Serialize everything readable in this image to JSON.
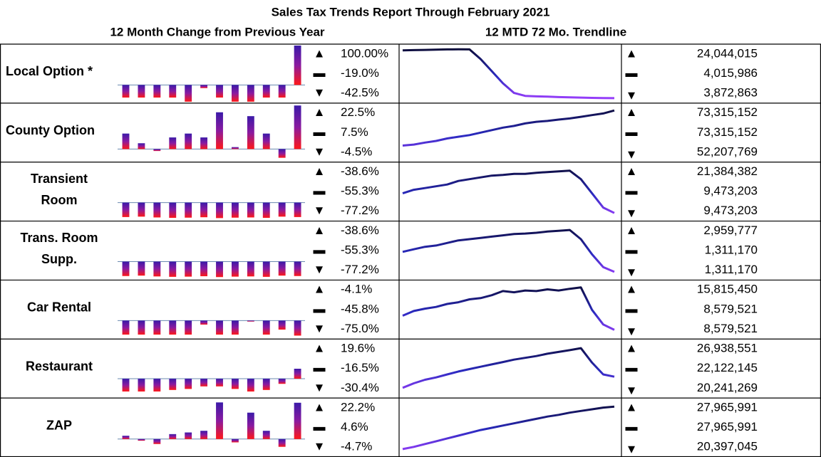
{
  "title": "Sales Tax Trends Report Through February 2021",
  "subtitle_left": "12 Month Change from Previous Year",
  "subtitle_right": "12 MTD 72 Mo. Trendline",
  "rows": [
    {
      "label": [
        "Local Option *"
      ],
      "bars": [
        -32,
        -32,
        -32,
        -32,
        -42.5,
        -8,
        -32,
        -42.5,
        -42.5,
        -32,
        -32,
        100
      ],
      "bar_ylim": [
        -42.5,
        100
      ],
      "pct": [
        "100.00%",
        "-19.0%",
        "-42.5%"
      ],
      "trend": [
        23.6,
        23.7,
        23.8,
        23.9,
        24.0,
        24.04,
        24.0,
        20,
        15,
        10,
        6,
        4.8,
        4.6,
        4.5,
        4.3,
        4.2,
        4.1,
        4.0,
        3.9,
        3.87
      ],
      "trend_ylim": [
        3,
        25
      ],
      "totals": [
        "24,044,015",
        "4,015,986",
        "3,872,863"
      ]
    },
    {
      "label": [
        "County Option"
      ],
      "bars": [
        8,
        3,
        -1,
        6,
        8,
        6,
        19,
        1,
        17,
        8,
        -4.5,
        22.5
      ],
      "bar_ylim": [
        -6,
        23
      ],
      "pct": [
        "22.5%",
        "7.5%",
        "-4.5%"
      ],
      "trend": [
        52.2,
        52.8,
        54,
        55,
        56.5,
        57.5,
        58.5,
        60,
        61.5,
        63,
        64,
        65.5,
        66.5,
        67,
        67.8,
        68.5,
        69.5,
        70.5,
        71.5,
        73.3
      ],
      "trend_ylim": [
        44,
        76
      ],
      "totals": [
        "73,315,152",
        "73,315,152",
        "52,207,769"
      ]
    },
    {
      "label": [
        "Transient",
        "Room"
      ],
      "bars": [
        -72,
        -70,
        -74,
        -76,
        -75,
        -73,
        -77.2,
        -75,
        -74,
        -76,
        -70,
        -72
      ],
      "bar_ylim": [
        -85,
        195
      ],
      "pct": [
        "-38.6%",
        "-55.3%",
        "-77.2%"
      ],
      "trend": [
        15,
        16,
        16.5,
        17,
        17.5,
        18.5,
        19,
        19.5,
        20,
        20.2,
        20.5,
        20.5,
        20.8,
        21,
        21.2,
        21.38,
        19,
        15,
        11,
        9.47
      ],
      "trend_ylim": [
        8,
        23
      ],
      "totals": [
        "21,384,382",
        "9,473,203",
        "9,473,203"
      ]
    },
    {
      "label": [
        "Trans. Room",
        "Supp."
      ],
      "bars": [
        -72,
        -70,
        -74,
        -76,
        -75,
        -73,
        -77.2,
        -75,
        -74,
        -76,
        -70,
        -72
      ],
      "bar_ylim": [
        -85,
        195
      ],
      "pct": [
        "-38.6%",
        "-55.3%",
        "-77.2%"
      ],
      "trend": [
        2.1,
        2.2,
        2.3,
        2.35,
        2.45,
        2.55,
        2.6,
        2.65,
        2.7,
        2.75,
        2.8,
        2.82,
        2.85,
        2.9,
        2.93,
        2.96,
        2.6,
        2.0,
        1.5,
        1.31
      ],
      "trend_ylim": [
        1.1,
        3.2
      ],
      "totals": [
        "2,959,777",
        "1,311,170",
        "1,311,170"
      ]
    },
    {
      "label": [
        "Car Rental"
      ],
      "bars": [
        -70,
        -70,
        -70,
        -70,
        -70,
        -20,
        -70,
        -70,
        -5,
        -70,
        -45,
        -75
      ],
      "bar_ylim": [
        -85,
        195
      ],
      "pct": [
        "-4.1%",
        "-45.8%",
        "-75.0%"
      ],
      "trend": [
        11,
        11.8,
        12.2,
        12.5,
        13,
        13.3,
        13.8,
        14,
        14.5,
        15.2,
        15,
        15.3,
        15.2,
        15.5,
        15.3,
        15.6,
        15.82,
        12,
        9.5,
        8.58
      ],
      "trend_ylim": [
        7.5,
        16.6
      ],
      "totals": [
        "15,815,450",
        "8,579,521",
        "8,579,521"
      ]
    },
    {
      "label": [
        "Restaurant"
      ],
      "bars": [
        -25,
        -25,
        -25,
        -22,
        -20,
        -15,
        -15,
        -20,
        -25,
        -22,
        -10,
        19.6
      ],
      "bar_ylim": [
        -35,
        75
      ],
      "pct": [
        "19.6%",
        "-16.5%",
        "-30.4%"
      ],
      "trend": [
        20.24,
        21,
        21.6,
        22,
        22.5,
        23,
        23.4,
        23.8,
        24.2,
        24.6,
        25,
        25.3,
        25.6,
        26,
        26.3,
        26.6,
        26.94,
        24.5,
        22.5,
        22.12
      ],
      "trend_ylim": [
        19,
        28
      ],
      "totals": [
        "26,938,551",
        "22,122,145",
        "20,241,269"
      ]
    },
    {
      "label": [
        "ZAP"
      ],
      "bars": [
        2,
        -1,
        -3,
        3,
        4,
        5,
        22.2,
        -2,
        16,
        5,
        -4.7,
        22
      ],
      "bar_ylim": [
        -10,
        24
      ],
      "pct": [
        "22.2%",
        "4.6%",
        "-4.7%"
      ],
      "trend": [
        20.4,
        20.8,
        21.3,
        21.8,
        22.3,
        22.8,
        23.3,
        23.8,
        24.2,
        24.6,
        25,
        25.4,
        25.8,
        26.2,
        26.5,
        26.9,
        27.2,
        27.5,
        27.8,
        27.97
      ],
      "trend_ylim": [
        19.5,
        29
      ],
      "totals": [
        "27,965,991",
        "27,965,991",
        "20,397,045"
      ]
    }
  ]
}
